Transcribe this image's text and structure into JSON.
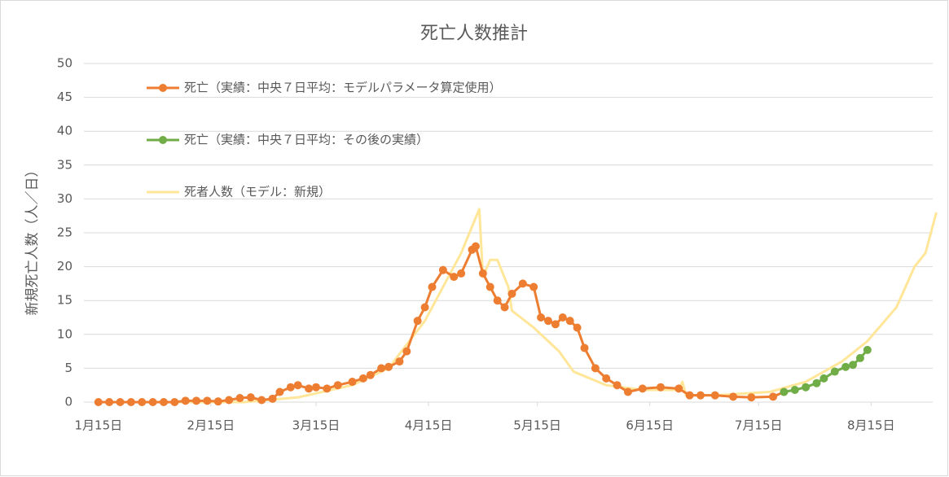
{
  "chart_data": {
    "type": "line",
    "title": "死亡人数推計",
    "y_label": "新規死亡人数（人／日）",
    "xlim": [
      -4,
      230
    ],
    "xticks": [
      {
        "value": 0,
        "label": "1月15日"
      },
      {
        "value": 31,
        "label": "2月15日"
      },
      {
        "value": 60,
        "label": "3月15日"
      },
      {
        "value": 91,
        "label": "4月15日"
      },
      {
        "value": 121,
        "label": "5月15日"
      },
      {
        "value": 152,
        "label": "6月15日"
      },
      {
        "value": 182,
        "label": "7月15日"
      },
      {
        "value": 213,
        "label": "8月15日"
      }
    ],
    "ylim": [
      0,
      50
    ],
    "yticks": [
      0,
      5,
      10,
      15,
      20,
      25,
      30,
      35,
      40,
      45,
      50
    ],
    "grid": true,
    "legend": "top-left",
    "series": [
      {
        "name": "死亡（実績：中央７日平均：モデルパラメータ算定使用）",
        "color": "#ed7d31",
        "marker": true,
        "x": [
          0,
          3,
          6,
          9,
          12,
          15,
          18,
          21,
          24,
          27,
          30,
          33,
          36,
          39,
          42,
          45,
          48,
          50,
          53,
          55,
          58,
          60,
          63,
          66,
          70,
          73,
          75,
          78,
          80,
          83,
          85,
          88,
          90,
          92,
          95,
          98,
          100,
          103,
          104,
          106,
          108,
          110,
          112,
          114,
          117,
          120,
          122,
          124,
          126,
          128,
          130,
          132,
          134,
          137,
          140,
          143,
          146,
          150,
          155,
          160,
          163,
          166,
          170,
          175,
          180,
          186,
          189
        ],
        "values": [
          0,
          0,
          0,
          0,
          0,
          0,
          0,
          0,
          0.2,
          0.2,
          0.2,
          0.1,
          0.3,
          0.6,
          0.7,
          0.3,
          0.5,
          1.5,
          2.2,
          2.5,
          2,
          2.2,
          2,
          2.5,
          3,
          3.5,
          4,
          5,
          5.2,
          6,
          7.5,
          12,
          14,
          17,
          19.5,
          18.5,
          19,
          22.5,
          23,
          19,
          17,
          15,
          14,
          16,
          17.5,
          17,
          12.5,
          12,
          11.5,
          12.5,
          12,
          11,
          8,
          5,
          3.5,
          2.5,
          1.5,
          2,
          2.2,
          2,
          1,
          1,
          1,
          0.8,
          0.7,
          0.8,
          1.5
        ]
      },
      {
        "name": "死亡（実績：中央７日平均：その後の実績）",
        "color": "#70ad47",
        "marker": true,
        "x": [
          189,
          192,
          195,
          198,
          200,
          203,
          206,
          208,
          210,
          212
        ],
        "values": [
          1.5,
          1.8,
          2.2,
          2.8,
          3.5,
          4.5,
          5.2,
          5.5,
          6.5,
          7.7
        ]
      },
      {
        "name": "死者人数（モデル：新規）",
        "color": "#ffe699",
        "marker": false,
        "x": [
          13,
          40,
          55,
          70,
          80,
          90,
          95,
          100,
          105,
          106,
          108,
          110,
          113,
          114,
          120,
          127,
          131,
          140,
          150,
          160,
          161,
          162,
          170,
          185,
          195,
          205,
          212,
          220,
          225,
          228,
          231
        ],
        "values": [
          0,
          0,
          0.7,
          2.5,
          5,
          12,
          17,
          22,
          28.5,
          18.5,
          21,
          21,
          17,
          13.5,
          11,
          7.5,
          4.5,
          2.5,
          1.8,
          1.8,
          3,
          1,
          1,
          1.5,
          3,
          6,
          9,
          14,
          20,
          22,
          28
        ]
      }
    ]
  }
}
